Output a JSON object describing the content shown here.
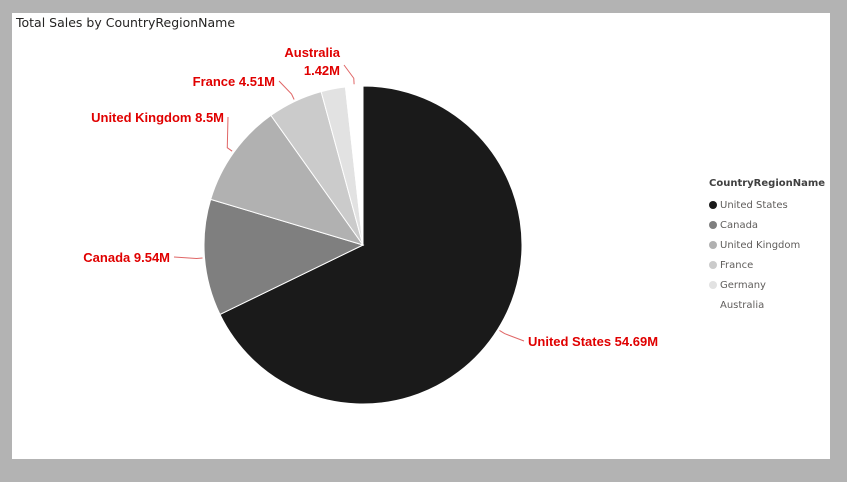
{
  "chart_data": {
    "type": "pie",
    "title": "Total Sales by CountryRegionName",
    "legend_title": "CountryRegionName",
    "legend_position": "right",
    "categories": [
      "United States",
      "Canada",
      "United Kingdom",
      "France",
      "Germany",
      "Australia"
    ],
    "values": [
      54.69,
      9.54,
      8.5,
      4.51,
      2.0,
      1.42
    ],
    "data_labels": [
      {
        "category": "United States",
        "text": "United States 54.69M"
      },
      {
        "category": "Canada",
        "text": "Canada 9.54M"
      },
      {
        "category": "United Kingdom",
        "text": "United Kingdom 8.5M"
      },
      {
        "category": "France",
        "text": "France 4.51M"
      },
      {
        "category": "Australia",
        "text": "Australia 1.42M"
      }
    ],
    "colors": [
      "#1a1a1a",
      "#7f7f7f",
      "#b1b1b1",
      "#cbcbcb",
      "#e2e2e2",
      "#ffffff"
    ],
    "label_color": "#e00000",
    "leader_color": "#e06666"
  }
}
